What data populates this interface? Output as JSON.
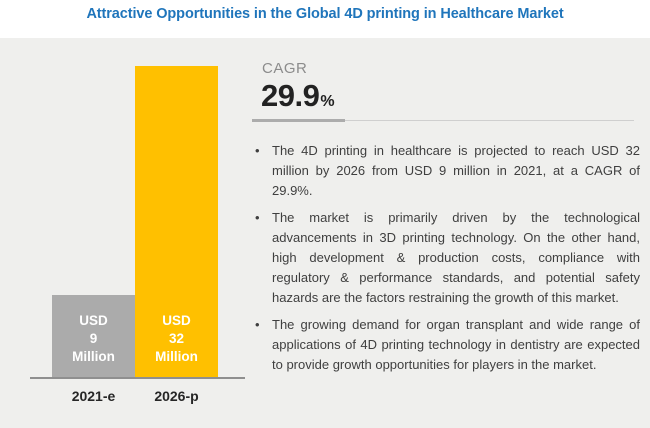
{
  "title": "Attractive Opportunities in the Global 4D printing in Healthcare Market",
  "chart_data": {
    "type": "bar",
    "title": "Attractive Opportunities in the Global 4D printing in Healthcare Market",
    "categories": [
      "2021-e",
      "2026-p"
    ],
    "values": [
      9,
      32
    ],
    "unit": "USD Million",
    "bar_labels": [
      [
        "USD",
        "9",
        "Million"
      ],
      [
        "USD",
        "32",
        "Million"
      ]
    ],
    "bar_colors": [
      "#ABABAB",
      "#FFC000"
    ],
    "ylim": [
      0,
      34
    ],
    "grid": false,
    "legend": "none"
  },
  "cagr": {
    "label": "CAGR",
    "value": "29.9",
    "unit": "%"
  },
  "bullets": [
    "The 4D printing in healthcare is projected to reach USD 32 million by 2026 from USD 9 million in 2021, at a CAGR of 29.9%.",
    "The market is primarily driven by the technological advancements in 3D printing technology. On the other hand, high development & production costs, compliance with regulatory & performance standards, and potential safety hazards are the factors restraining the growth of this market.",
    "The growing demand for organ transplant and wide range of applications of 4D printing technology in dentistry are expected to provide growth opportunities for players in the market."
  ],
  "colors": {
    "title_blue": "#1F75BB",
    "bar_gray": "#ABABAB",
    "bar_yellow": "#FFC000",
    "panel_background": "#EFEFED",
    "body_text": "#3F3F3F",
    "axis_gray": "#8F8F8F"
  }
}
